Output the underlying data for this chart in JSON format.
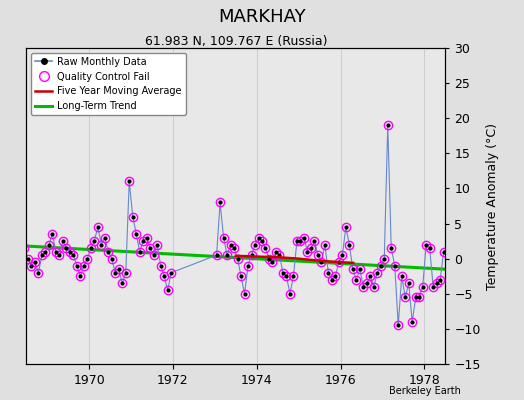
{
  "title": "MARKHAY",
  "subtitle": "61.983 N, 109.767 E (Russia)",
  "ylabel": "Temperature Anomaly (°C)",
  "watermark": "Berkeley Earth",
  "xlim": [
    1968.5,
    1978.5
  ],
  "ylim": [
    -15,
    30
  ],
  "yticks": [
    -15,
    -10,
    -5,
    0,
    5,
    10,
    15,
    20,
    25,
    30
  ],
  "xticks": [
    1970,
    1972,
    1974,
    1976,
    1978
  ],
  "bg_color": "#e8e8e8",
  "fig_color": "#e0e0e0",
  "raw_x": [
    1968.042,
    1968.125,
    1968.208,
    1968.292,
    1968.375,
    1968.458,
    1968.542,
    1968.625,
    1968.708,
    1968.792,
    1968.875,
    1968.958,
    1969.042,
    1969.125,
    1969.208,
    1969.292,
    1969.375,
    1969.458,
    1969.542,
    1969.625,
    1969.708,
    1969.792,
    1969.875,
    1969.958,
    1970.042,
    1970.125,
    1970.208,
    1970.292,
    1970.375,
    1970.458,
    1970.542,
    1970.625,
    1970.708,
    1970.792,
    1970.875,
    1970.958,
    1971.042,
    1971.125,
    1971.208,
    1971.292,
    1971.375,
    1971.458,
    1971.542,
    1971.625,
    1971.708,
    1971.792,
    1971.875,
    1971.958,
    1973.042,
    1973.125,
    1973.208,
    1973.292,
    1973.375,
    1973.458,
    1973.542,
    1973.625,
    1973.708,
    1973.792,
    1973.875,
    1973.958,
    1974.042,
    1974.125,
    1974.208,
    1974.292,
    1974.375,
    1974.458,
    1974.542,
    1974.625,
    1974.708,
    1974.792,
    1974.875,
    1974.958,
    1975.042,
    1975.125,
    1975.208,
    1975.292,
    1975.375,
    1975.458,
    1975.542,
    1975.625,
    1975.708,
    1975.792,
    1975.875,
    1975.958,
    1976.042,
    1976.125,
    1976.208,
    1976.292,
    1976.375,
    1976.458,
    1976.542,
    1976.625,
    1976.708,
    1976.792,
    1976.875,
    1976.958,
    1977.042,
    1977.125,
    1977.208,
    1977.292,
    1977.375,
    1977.458,
    1977.542,
    1977.625,
    1977.708,
    1977.792,
    1977.875,
    1977.958,
    1978.042,
    1978.125,
    1978.208,
    1978.292,
    1978.375,
    1978.458
  ],
  "raw_y": [
    1.5,
    1.0,
    2.0,
    0.5,
    2.5,
    1.5,
    0.0,
    -1.0,
    -0.5,
    -2.0,
    0.5,
    1.0,
    2.0,
    3.5,
    1.0,
    0.5,
    2.5,
    1.5,
    1.0,
    0.5,
    -1.0,
    -2.5,
    -1.0,
    0.0,
    1.5,
    2.5,
    4.5,
    2.0,
    3.0,
    1.0,
    0.0,
    -2.0,
    -1.5,
    -3.5,
    -2.0,
    11.0,
    6.0,
    3.5,
    1.0,
    2.5,
    3.0,
    1.5,
    0.5,
    2.0,
    -1.0,
    -2.5,
    -4.5,
    -2.0,
    0.5,
    8.0,
    3.0,
    0.5,
    2.0,
    1.5,
    0.0,
    -2.5,
    -5.0,
    -1.0,
    0.5,
    2.0,
    3.0,
    2.5,
    1.5,
    0.0,
    -0.5,
    1.0,
    0.5,
    -2.0,
    -2.5,
    -5.0,
    -2.5,
    2.5,
    2.5,
    3.0,
    1.0,
    1.5,
    2.5,
    0.5,
    -0.5,
    2.0,
    -2.0,
    -3.0,
    -2.5,
    -0.5,
    0.5,
    4.5,
    2.0,
    -1.5,
    -3.0,
    -1.5,
    -4.0,
    -3.5,
    -2.5,
    -4.0,
    -2.0,
    -1.0,
    0.0,
    19.0,
    1.5,
    -1.0,
    -9.5,
    -2.5,
    -5.5,
    -3.5,
    -9.0,
    -5.5,
    -5.5,
    -4.0,
    2.0,
    1.5,
    -4.0,
    -3.5,
    -3.0,
    1.0
  ],
  "qc_x": [
    1968.042,
    1968.125,
    1968.208,
    1968.292,
    1968.375,
    1968.458,
    1968.542,
    1968.625,
    1968.708,
    1968.792,
    1968.875,
    1968.958,
    1969.042,
    1969.125,
    1969.208,
    1969.292,
    1969.375,
    1969.458,
    1969.542,
    1969.625,
    1969.708,
    1969.792,
    1969.875,
    1969.958,
    1970.042,
    1970.125,
    1970.208,
    1970.292,
    1970.375,
    1970.458,
    1970.542,
    1970.625,
    1970.708,
    1970.792,
    1970.875,
    1970.958,
    1971.042,
    1971.125,
    1971.208,
    1971.292,
    1971.375,
    1971.458,
    1971.542,
    1971.625,
    1971.708,
    1971.792,
    1971.875,
    1971.958,
    1973.042,
    1973.125,
    1973.208,
    1973.292,
    1973.375,
    1973.458,
    1973.542,
    1973.625,
    1973.708,
    1973.792,
    1973.875,
    1973.958,
    1974.042,
    1974.125,
    1974.208,
    1974.292,
    1974.375,
    1974.458,
    1974.542,
    1974.625,
    1974.708,
    1974.792,
    1974.875,
    1974.958,
    1975.042,
    1975.125,
    1975.208,
    1975.292,
    1975.375,
    1975.458,
    1975.542,
    1975.625,
    1975.708,
    1975.792,
    1975.875,
    1975.958,
    1976.042,
    1976.125,
    1976.208,
    1976.292,
    1976.375,
    1976.458,
    1976.542,
    1976.625,
    1976.708,
    1976.792,
    1976.875,
    1976.958,
    1977.042,
    1977.125,
    1977.208,
    1977.292,
    1977.375,
    1977.458,
    1977.542,
    1977.625,
    1977.708,
    1977.792,
    1977.875,
    1977.958,
    1978.042,
    1978.125,
    1978.208,
    1978.292,
    1978.375,
    1978.458
  ],
  "qc_y": [
    1.5,
    1.0,
    2.0,
    0.5,
    2.5,
    1.5,
    0.0,
    -1.0,
    -0.5,
    -2.0,
    0.5,
    1.0,
    2.0,
    3.5,
    1.0,
    0.5,
    2.5,
    1.5,
    1.0,
    0.5,
    -1.0,
    -2.5,
    -1.0,
    0.0,
    1.5,
    2.5,
    4.5,
    2.0,
    3.0,
    1.0,
    0.0,
    -2.0,
    -1.5,
    -3.5,
    -2.0,
    11.0,
    6.0,
    3.5,
    1.0,
    2.5,
    3.0,
    1.5,
    0.5,
    2.0,
    -1.0,
    -2.5,
    -4.5,
    -2.0,
    0.5,
    8.0,
    3.0,
    0.5,
    2.0,
    1.5,
    0.0,
    -2.5,
    -5.0,
    -1.0,
    0.5,
    2.0,
    3.0,
    2.5,
    1.5,
    0.0,
    -0.5,
    1.0,
    0.5,
    -2.0,
    -2.5,
    -5.0,
    -2.5,
    2.5,
    2.5,
    3.0,
    1.0,
    1.5,
    2.5,
    0.5,
    -0.5,
    2.0,
    -2.0,
    -3.0,
    -2.5,
    -0.5,
    0.5,
    4.5,
    2.0,
    -1.5,
    -3.0,
    -1.5,
    -4.0,
    -3.5,
    -2.5,
    -4.0,
    -2.0,
    -1.0,
    0.0,
    19.0,
    1.5,
    -1.0,
    -9.5,
    -2.5,
    -5.5,
    -3.5,
    -9.0,
    -5.5,
    -5.5,
    -4.0,
    2.0,
    1.5,
    -4.0,
    -3.5,
    -3.0,
    1.0
  ],
  "ma_x": [
    1973.5,
    1974.0,
    1974.5,
    1975.0,
    1975.5,
    1976.0,
    1976.3
  ],
  "ma_y": [
    0.4,
    0.3,
    0.2,
    0.0,
    -0.3,
    -0.5,
    -0.6
  ],
  "trend_x": [
    1968.5,
    1978.5
  ],
  "trend_y": [
    1.8,
    -1.5
  ],
  "raw_line_color": "#6688cc",
  "raw_marker_color": "#000000",
  "qc_marker_color": "#ff00ff",
  "ma_color": "#cc0000",
  "trend_color": "#00bb00",
  "grid_color": "#cccccc",
  "title_fontsize": 13,
  "subtitle_fontsize": 9,
  "tick_fontsize": 9,
  "ylabel_fontsize": 9
}
